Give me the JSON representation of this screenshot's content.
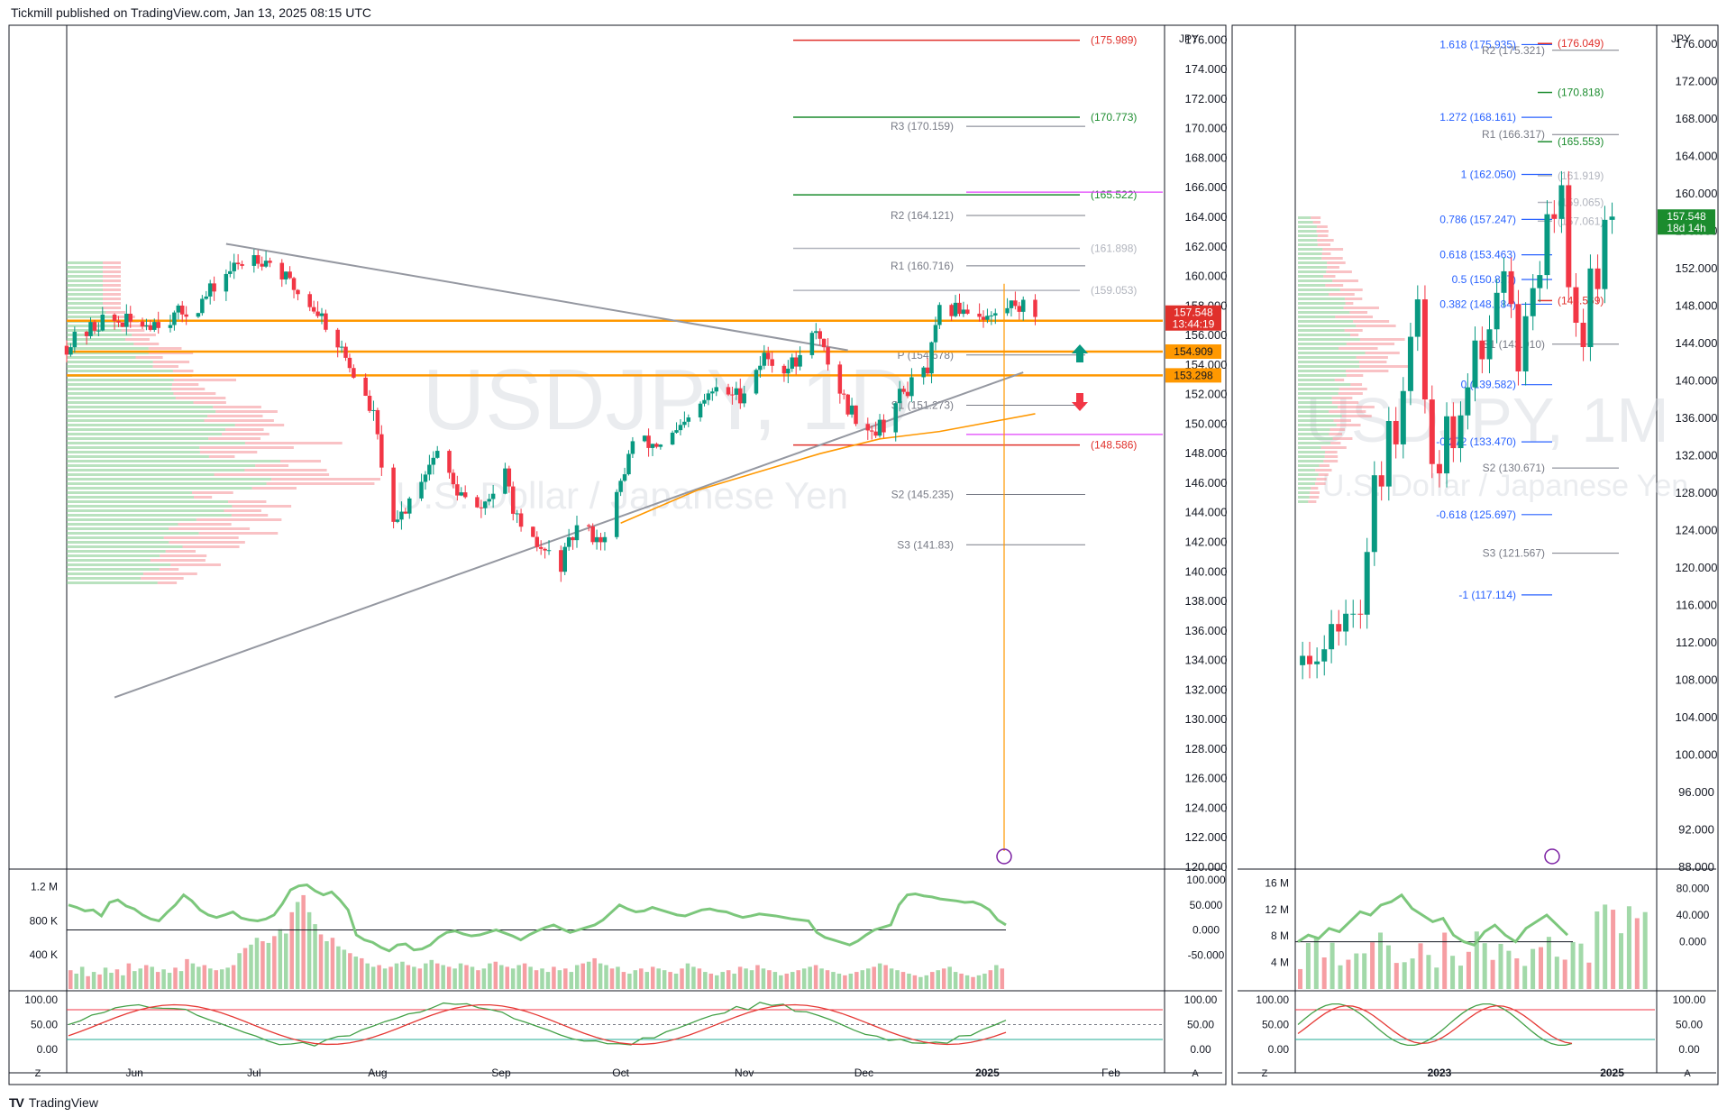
{
  "header": {
    "published": "Tickmill published on TradingView.com, Jan 13, 2025 08:15 UTC"
  },
  "footer": {
    "brand": "TradingView",
    "logo": "TV"
  },
  "colors": {
    "up": "#089981",
    "down": "#f23645",
    "orange": "#ff9800",
    "green_level": "#1b8c2e",
    "red_level": "#e0302b",
    "magenta": "#e040fb",
    "blue": "#2962ff",
    "price_label": "#e0302b",
    "price_label_monthly": "#1b8c2e"
  },
  "chart_data": [
    {
      "panel": "daily",
      "type": "candlestick",
      "currency": "JPY",
      "watermark": {
        "symbol": "USDJPY, 1D",
        "description": "U.S. Dollar / Japanese Yen"
      },
      "y_axis_ticks": [
        "176.000",
        "174.000",
        "172.000",
        "170.000",
        "168.000",
        "166.000",
        "164.000",
        "162.000",
        "160.000",
        "158.000",
        "156.000",
        "154.000",
        "152.000",
        "150.000",
        "148.000",
        "146.000",
        "144.000",
        "142.000",
        "140.000",
        "138.000",
        "136.000",
        "134.000",
        "132.000",
        "130.000",
        "128.000",
        "126.000",
        "124.000",
        "122.000",
        "120.000"
      ],
      "ylim": [
        120,
        177
      ],
      "x_axis_labels": [
        "Jun",
        "Jul",
        "Aug",
        "Sep",
        "Oct",
        "Nov",
        "Dec",
        "2025",
        "Feb"
      ],
      "close_path": [
        [
          "2024-05-15",
          155.3
        ],
        [
          "2024-05-24",
          157.0
        ],
        [
          "2024-06-03",
          156.8
        ],
        [
          "2024-06-10",
          157.2
        ],
        [
          "2024-06-17",
          158.0
        ],
        [
          "2024-06-24",
          160.2
        ],
        [
          "2024-07-01",
          161.5
        ],
        [
          "2024-07-05",
          161.0
        ],
        [
          "2024-07-11",
          159.2
        ],
        [
          "2024-07-18",
          157.3
        ],
        [
          "2024-07-24",
          154.5
        ],
        [
          "2024-07-31",
          150.5
        ],
        [
          "2024-08-05",
          142.8
        ],
        [
          "2024-08-12",
          146.5
        ],
        [
          "2024-08-16",
          148.2
        ],
        [
          "2024-08-20",
          145.8
        ],
        [
          "2024-08-26",
          144.0
        ],
        [
          "2024-09-02",
          146.5
        ],
        [
          "2024-09-06",
          142.5
        ],
        [
          "2024-09-16",
          140.5
        ],
        [
          "2024-09-20",
          143.0
        ],
        [
          "2024-09-27",
          142.2
        ],
        [
          "2024-10-04",
          148.8
        ],
        [
          "2024-10-10",
          148.6
        ],
        [
          "2024-10-16",
          149.5
        ],
        [
          "2024-10-24",
          152.2
        ],
        [
          "2024-10-31",
          152.0
        ],
        [
          "2024-11-06",
          154.6
        ],
        [
          "2024-11-11",
          153.8
        ],
        [
          "2024-11-15",
          154.3
        ],
        [
          "2024-11-18",
          156.7
        ],
        [
          "2024-11-22",
          154.2
        ],
        [
          "2024-11-27",
          151.1
        ],
        [
          "2024-12-03",
          149.6
        ],
        [
          "2024-12-06",
          150.0
        ],
        [
          "2024-12-10",
          151.9
        ],
        [
          "2024-12-17",
          153.7
        ],
        [
          "2024-12-20",
          157.5
        ],
        [
          "2024-12-26",
          157.9
        ],
        [
          "2025-01-02",
          157.2
        ],
        [
          "2025-01-08",
          158.3
        ],
        [
          "2025-01-10",
          157.9
        ],
        [
          "2025-01-13",
          157.548
        ]
      ],
      "horizontal_levels": [
        {
          "label": "(175.989)",
          "value": 175.989,
          "color": "red"
        },
        {
          "label": "(170.773)",
          "value": 170.773,
          "color": "green"
        },
        {
          "label": "(165.522)",
          "value": 165.522,
          "color": "green"
        },
        {
          "label": "(161.898)",
          "value": 161.898,
          "color": "grey"
        },
        {
          "label": "(159.053)",
          "value": 159.053,
          "color": "grey"
        },
        {
          "label": "(148.586)",
          "value": 148.586,
          "color": "red"
        }
      ],
      "pivot_levels": [
        {
          "label": "R3 (170.159)",
          "value": 170.159
        },
        {
          "label": "R2 (164.121)",
          "value": 164.121
        },
        {
          "label": "R1 (160.716)",
          "value": 160.716
        },
        {
          "label": "P (154.678)",
          "value": 154.678
        },
        {
          "label": "S1 (151.273)",
          "value": 151.273
        },
        {
          "label": "S2 (145.235)",
          "value": 145.235
        },
        {
          "label": "S3 (141.83)",
          "value": 141.83
        }
      ],
      "price_labels": [
        {
          "text": "157.548",
          "sub": "13:44:19",
          "value": 157.548
        },
        {
          "text": "154.909",
          "value": 154.909
        },
        {
          "text": "153.298",
          "value": 153.298
        }
      ],
      "orange_band_levels": [
        157.0,
        154.909,
        153.298
      ],
      "trendlines": [
        {
          "from": [
            "2024-06-24",
            162.2
          ],
          "to": [
            "2024-11-27",
            155.0
          ]
        },
        {
          "from": [
            "2024-05-27",
            131.5
          ],
          "to": [
            "2025-01-10",
            153.5
          ]
        }
      ],
      "volume": {
        "y_axis_ticks": [
          "1.2 M",
          "800 K",
          "400 K"
        ],
        "right_ticks": [
          "100.000",
          "50.000",
          "0.000",
          "-50.000"
        ],
        "bar_values_k": [
          220,
          180,
          260,
          150,
          200,
          170,
          250,
          190,
          230,
          160,
          300,
          210,
          240,
          280,
          260,
          200,
          230,
          190,
          250,
          210,
          350,
          300,
          260,
          280,
          240,
          220,
          230,
          250,
          280,
          420,
          480,
          520,
          600,
          560,
          540,
          620,
          700,
          650,
          900,
          1020,
          1100,
          900,
          760,
          640,
          560,
          600,
          500,
          460,
          420,
          380,
          360,
          300,
          260,
          280,
          240,
          260,
          300,
          320,
          280,
          260,
          240,
          300,
          340,
          300,
          280,
          260,
          240,
          300,
          280,
          260,
          220,
          240,
          300,
          320,
          280,
          260,
          240,
          280,
          300,
          260,
          220,
          240,
          200,
          260,
          220,
          240,
          200,
          280,
          300,
          320,
          360,
          300,
          280,
          240,
          260,
          200,
          180,
          220,
          240,
          200,
          260,
          240,
          220,
          200,
          180,
          240,
          300,
          260,
          240,
          200,
          180,
          160,
          200,
          220,
          180,
          260,
          240,
          220,
          280,
          240,
          220,
          200,
          160,
          180,
          200,
          220,
          240,
          260,
          280,
          240,
          220,
          200,
          180,
          160,
          180,
          200,
          220,
          240,
          260,
          300,
          280,
          240,
          220,
          200,
          180,
          160,
          140,
          160,
          200,
          220,
          240,
          260,
          200,
          180,
          160,
          140,
          160,
          180,
          220,
          280,
          240
        ],
        "oscillator_path": [
          50,
          45,
          38,
          40,
          28,
          55,
          60,
          48,
          42,
          30,
          22,
          18,
          35,
          50,
          70,
          58,
          40,
          30,
          25,
          30,
          36,
          24,
          20,
          18,
          22,
          30,
          52,
          80,
          88,
          90,
          78,
          70,
          76,
          60,
          40,
          -10,
          -20,
          -25,
          -35,
          -42,
          -30,
          -28,
          -40,
          -38,
          -30,
          -15,
          -5,
          -2,
          -8,
          -12,
          -10,
          -5,
          0,
          -6,
          -12,
          -20,
          -10,
          -2,
          5,
          10,
          2,
          -5,
          0,
          5,
          10,
          20,
          35,
          50,
          42,
          36,
          38,
          45,
          40,
          35,
          30,
          28,
          34,
          40,
          42,
          38,
          36,
          30,
          25,
          28,
          32,
          30,
          28,
          25,
          22,
          20,
          18,
          -5,
          -15,
          -20,
          -25,
          -30,
          -22,
          -10,
          0,
          5,
          10,
          50,
          70,
          72,
          68,
          66,
          62,
          60,
          58,
          55,
          56,
          50,
          40,
          20,
          10
        ]
      },
      "stochastic": {
        "y_axis_ticks": [
          "100.00",
          "50.00",
          "0.00"
        ],
        "upper_line": 80,
        "lower_line": 20
      },
      "footer_buttons": {
        "left": "Z",
        "right": "A"
      }
    },
    {
      "panel": "monthly",
      "type": "candlestick",
      "currency": "JPY",
      "watermark": {
        "symbol": "USDJPY, 1M",
        "description": "U.S. Dollar / Japanese Yen"
      },
      "y_axis_ticks": [
        "176.000",
        "172.000",
        "168.000",
        "164.000",
        "160.000",
        "156.000",
        "152.000",
        "148.000",
        "144.000",
        "140.000",
        "136.000",
        "132.000",
        "128.000",
        "124.000",
        "120.000",
        "116.000",
        "112.000",
        "108.000",
        "104.000",
        "100.000",
        "96.000",
        "92.000",
        "88.000"
      ],
      "ylim": [
        88,
        178
      ],
      "x_axis_labels": [
        "2023",
        "2025"
      ],
      "fib_levels": [
        {
          "label": "1.618 (175.935)",
          "value": 175.935
        },
        {
          "label": "1.272 (168.161)",
          "value": 168.161
        },
        {
          "label": "1 (162.050)",
          "value": 162.05
        },
        {
          "label": "0.786 (157.247)",
          "value": 157.247
        },
        {
          "label": "0.618 (153.463)",
          "value": 153.463
        },
        {
          "label": "0.5 (150.827)",
          "value": 150.827
        },
        {
          "label": "0.382 (148.184)",
          "value": 148.184
        },
        {
          "label": "0 (139.582)",
          "value": 139.582
        },
        {
          "label": "-0.272 (133.470)",
          "value": 133.47
        },
        {
          "label": "-0.618 (125.697)",
          "value": 125.697
        },
        {
          "label": "-1 (117.114)",
          "value": 117.114
        }
      ],
      "pivot_levels": [
        {
          "label": "R2 (175.321)",
          "value": 175.321
        },
        {
          "label": "R1 (166.317)",
          "value": 166.317
        },
        {
          "label": "S1 (143.910)",
          "value": 143.91
        },
        {
          "label": "S2 (130.671)",
          "value": 130.671
        },
        {
          "label": "S3 (121.567)",
          "value": 121.567
        }
      ],
      "horizontal_levels": [
        {
          "label": "(176.049)",
          "value": 176.049,
          "color": "red"
        },
        {
          "label": "(170.818)",
          "value": 170.818,
          "color": "green"
        },
        {
          "label": "(165.553)",
          "value": 165.553,
          "color": "green"
        },
        {
          "label": "(161.919)",
          "value": 161.919,
          "color": "grey"
        },
        {
          "label": "(159.065)",
          "value": 159.065,
          "color": "grey"
        },
        {
          "label": "(157.061)",
          "value": 157.061,
          "color": "grey"
        },
        {
          "label": "(148.569)",
          "value": 148.569,
          "color": "red"
        }
      ],
      "price_labels": [
        {
          "text": "157.548",
          "sub": "18d 14h",
          "value": 157.548
        }
      ],
      "close_path": [
        [
          "2021-06",
          110.6
        ],
        [
          "2021-07",
          109.7
        ],
        [
          "2021-08",
          110.0
        ],
        [
          "2021-09",
          111.3
        ],
        [
          "2021-10",
          114.0
        ],
        [
          "2021-11",
          113.2
        ],
        [
          "2021-12",
          115.1
        ],
        [
          "2022-01",
          115.1
        ],
        [
          "2022-02",
          115.0
        ],
        [
          "2022-03",
          121.7
        ],
        [
          "2022-04",
          129.9
        ],
        [
          "2022-05",
          128.7
        ],
        [
          "2022-06",
          135.7
        ],
        [
          "2022-07",
          133.2
        ],
        [
          "2022-08",
          138.9
        ],
        [
          "2022-09",
          144.7
        ],
        [
          "2022-10",
          148.7
        ],
        [
          "2022-11",
          138.0
        ],
        [
          "2022-12",
          131.1
        ],
        [
          "2023-01",
          130.1
        ],
        [
          "2023-02",
          136.2
        ],
        [
          "2023-03",
          132.8
        ],
        [
          "2023-04",
          136.3
        ],
        [
          "2023-05",
          139.3
        ],
        [
          "2023-06",
          144.3
        ],
        [
          "2023-07",
          142.3
        ],
        [
          "2023-08",
          145.5
        ],
        [
          "2023-09",
          149.4
        ],
        [
          "2023-10",
          151.7
        ],
        [
          "2023-11",
          148.2
        ],
        [
          "2023-12",
          141.0
        ],
        [
          "2024-01",
          146.9
        ],
        [
          "2024-02",
          149.9
        ],
        [
          "2024-03",
          151.3
        ],
        [
          "2024-04",
          157.8
        ],
        [
          "2024-05",
          157.3
        ],
        [
          "2024-06",
          160.9
        ],
        [
          "2024-07",
          150.0
        ],
        [
          "2024-08",
          146.2
        ],
        [
          "2024-09",
          143.6
        ],
        [
          "2024-10",
          152.0
        ],
        [
          "2024-11",
          149.8
        ],
        [
          "2024-12",
          157.2
        ],
        [
          "2025-01",
          157.548
        ]
      ],
      "volume": {
        "y_axis_ticks": [
          "16 M",
          "12 M",
          "8 M",
          "4 M"
        ],
        "right_ticks": [
          "80.000",
          "40.000",
          "0.000"
        ]
      },
      "stochastic": {
        "y_axis_ticks": [
          "100.00",
          "50.00",
          "0.00"
        ]
      },
      "footer_buttons": {
        "left": "Z",
        "right": "A"
      }
    }
  ]
}
